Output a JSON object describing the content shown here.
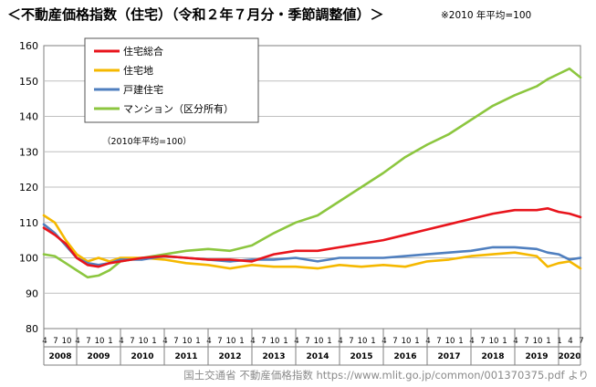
{
  "header": {
    "title": "＜不動産価格指数（住宅）（令和２年７月分・季節調整値）＞",
    "note": "※2010 年平均=100"
  },
  "source": "国土交通省 不動産価格指数 https://www.mlit.go.jp/common/001370375.pdf より",
  "chart_data": {
    "type": "line",
    "title": "不動産価格指数（住宅）（令和２年７月分・季節調整値）",
    "annotation": "（2010年平均=100）",
    "ylim": [
      80,
      160
    ],
    "y_ticks": [
      80,
      90,
      100,
      110,
      120,
      130,
      140,
      150,
      160
    ],
    "grid": true,
    "legend_position": "top-left",
    "x_range": {
      "start": "2008-04",
      "end": "2020-07"
    },
    "month_tick_labels": [
      "4",
      "7",
      "10",
      "1"
    ],
    "last_year_month_ticks": [
      "1",
      "4",
      "7"
    ],
    "year_labels": [
      "2008",
      "2009",
      "2010",
      "2011",
      "2012",
      "2013",
      "2014",
      "2015",
      "2016",
      "2017",
      "2018",
      "2019",
      "2020"
    ],
    "series": [
      {
        "name": "住宅総合",
        "color": "#e8141c",
        "points": [
          [
            "2008-04",
            108.5
          ],
          [
            "2008-07",
            106.5
          ],
          [
            "2008-10",
            104.0
          ],
          [
            "2009-01",
            100.0
          ],
          [
            "2009-04",
            98.0
          ],
          [
            "2009-07",
            97.5
          ],
          [
            "2009-10",
            98.5
          ],
          [
            "2010-01",
            99.0
          ],
          [
            "2010-07",
            100.0
          ],
          [
            "2011-01",
            100.5
          ],
          [
            "2011-07",
            100.0
          ],
          [
            "2012-01",
            99.5
          ],
          [
            "2012-07",
            99.5
          ],
          [
            "2013-01",
            99.0
          ],
          [
            "2013-07",
            101.0
          ],
          [
            "2014-01",
            102.0
          ],
          [
            "2014-07",
            102.0
          ],
          [
            "2015-01",
            103.0
          ],
          [
            "2015-07",
            104.0
          ],
          [
            "2016-01",
            105.0
          ],
          [
            "2016-07",
            106.5
          ],
          [
            "2017-01",
            108.0
          ],
          [
            "2017-07",
            109.5
          ],
          [
            "2018-01",
            111.0
          ],
          [
            "2018-07",
            112.5
          ],
          [
            "2019-01",
            113.5
          ],
          [
            "2019-07",
            113.5
          ],
          [
            "2019-10",
            114.0
          ],
          [
            "2020-01",
            113.0
          ],
          [
            "2020-04",
            112.5
          ],
          [
            "2020-07",
            111.5
          ]
        ]
      },
      {
        "name": "住宅地",
        "color": "#f5b800",
        "points": [
          [
            "2008-04",
            112.0
          ],
          [
            "2008-07",
            110.0
          ],
          [
            "2008-10",
            105.0
          ],
          [
            "2009-01",
            101.0
          ],
          [
            "2009-04",
            99.0
          ],
          [
            "2009-07",
            100.0
          ],
          [
            "2009-10",
            99.0
          ],
          [
            "2010-01",
            100.0
          ],
          [
            "2010-07",
            100.0
          ],
          [
            "2011-01",
            99.5
          ],
          [
            "2011-07",
            98.5
          ],
          [
            "2012-01",
            98.0
          ],
          [
            "2012-07",
            97.0
          ],
          [
            "2013-01",
            98.0
          ],
          [
            "2013-07",
            97.5
          ],
          [
            "2014-01",
            97.5
          ],
          [
            "2014-07",
            97.0
          ],
          [
            "2015-01",
            98.0
          ],
          [
            "2015-07",
            97.5
          ],
          [
            "2016-01",
            98.0
          ],
          [
            "2016-07",
            97.5
          ],
          [
            "2017-01",
            99.0
          ],
          [
            "2017-07",
            99.5
          ],
          [
            "2018-01",
            100.5
          ],
          [
            "2018-07",
            101.0
          ],
          [
            "2019-01",
            101.5
          ],
          [
            "2019-07",
            100.5
          ],
          [
            "2019-10",
            97.5
          ],
          [
            "2020-01",
            98.5
          ],
          [
            "2020-04",
            99.0
          ],
          [
            "2020-07",
            97.0
          ]
        ]
      },
      {
        "name": "戸建住宅",
        "color": "#4f7fbf",
        "points": [
          [
            "2008-04",
            109.5
          ],
          [
            "2008-07",
            107.0
          ],
          [
            "2008-10",
            103.5
          ],
          [
            "2009-01",
            100.0
          ],
          [
            "2009-04",
            98.5
          ],
          [
            "2009-07",
            98.0
          ],
          [
            "2009-10",
            98.5
          ],
          [
            "2010-01",
            99.5
          ],
          [
            "2010-07",
            99.5
          ],
          [
            "2011-01",
            100.5
          ],
          [
            "2011-07",
            100.0
          ],
          [
            "2012-01",
            99.5
          ],
          [
            "2012-07",
            99.0
          ],
          [
            "2013-01",
            99.5
          ],
          [
            "2013-07",
            99.5
          ],
          [
            "2014-01",
            100.0
          ],
          [
            "2014-07",
            99.0
          ],
          [
            "2015-01",
            100.0
          ],
          [
            "2015-07",
            100.0
          ],
          [
            "2016-01",
            100.0
          ],
          [
            "2016-07",
            100.5
          ],
          [
            "2017-01",
            101.0
          ],
          [
            "2017-07",
            101.5
          ],
          [
            "2018-01",
            102.0
          ],
          [
            "2018-07",
            103.0
          ],
          [
            "2019-01",
            103.0
          ],
          [
            "2019-07",
            102.5
          ],
          [
            "2019-10",
            101.5
          ],
          [
            "2020-01",
            101.0
          ],
          [
            "2020-04",
            99.5
          ],
          [
            "2020-07",
            100.0
          ]
        ]
      },
      {
        "name": "マンション（区分所有）",
        "color": "#8cc63f",
        "points": [
          [
            "2008-04",
            101.0
          ],
          [
            "2008-07",
            100.5
          ],
          [
            "2008-10",
            98.5
          ],
          [
            "2009-01",
            96.5
          ],
          [
            "2009-04",
            94.5
          ],
          [
            "2009-07",
            95.0
          ],
          [
            "2009-10",
            96.5
          ],
          [
            "2010-01",
            99.0
          ],
          [
            "2010-07",
            100.0
          ],
          [
            "2011-01",
            101.0
          ],
          [
            "2011-07",
            102.0
          ],
          [
            "2012-01",
            102.5
          ],
          [
            "2012-07",
            102.0
          ],
          [
            "2013-01",
            103.5
          ],
          [
            "2013-07",
            107.0
          ],
          [
            "2014-01",
            110.0
          ],
          [
            "2014-07",
            112.0
          ],
          [
            "2015-01",
            116.0
          ],
          [
            "2015-07",
            120.0
          ],
          [
            "2016-01",
            124.0
          ],
          [
            "2016-07",
            128.5
          ],
          [
            "2017-01",
            132.0
          ],
          [
            "2017-07",
            135.0
          ],
          [
            "2018-01",
            139.0
          ],
          [
            "2018-07",
            143.0
          ],
          [
            "2019-01",
            146.0
          ],
          [
            "2019-07",
            148.5
          ],
          [
            "2019-10",
            150.5
          ],
          [
            "2020-01",
            152.0
          ],
          [
            "2020-04",
            153.5
          ],
          [
            "2020-07",
            151.0
          ]
        ]
      }
    ]
  }
}
